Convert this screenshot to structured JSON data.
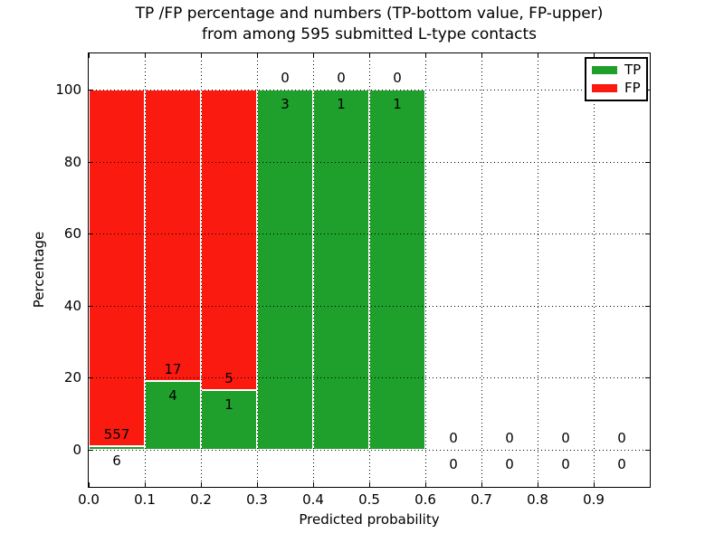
{
  "title": {
    "line1": "TP /FP percentage and numbers (TP-bottom value, FP-upper)",
    "line2": "from among 595 submitted L-type contacts"
  },
  "chart_data": {
    "type": "bar",
    "subtype": "stacked-percentage-histogram",
    "title": "TP /FP percentage and numbers (TP-bottom value, FP-upper) from among 595 submitted L-type contacts",
    "xlabel": "Predicted probability",
    "ylabel": "Percentage",
    "x_tick_labels": [
      "0.0",
      "0.1",
      "0.2",
      "0.3",
      "0.4",
      "0.5",
      "0.6",
      "0.7",
      "0.8",
      "0.9"
    ],
    "y_ticks": [
      0,
      20,
      40,
      60,
      80,
      100
    ],
    "xlim": [
      0.0,
      1.0
    ],
    "ylim": [
      -10.5,
      110.5
    ],
    "bin_width": 0.1,
    "grid": "dotted",
    "total_submitted": 595,
    "legend": {
      "position": "upper-right",
      "entries": [
        {
          "label": "TP",
          "color": "#1fa02c"
        },
        {
          "label": "FP",
          "color": "#fa1a0f"
        }
      ]
    },
    "bins": [
      {
        "range": "0.0-0.1",
        "tp": 6,
        "fp": 557
      },
      {
        "range": "0.1-0.2",
        "tp": 4,
        "fp": 17
      },
      {
        "range": "0.2-0.3",
        "tp": 1,
        "fp": 5
      },
      {
        "range": "0.3-0.4",
        "tp": 3,
        "fp": 0
      },
      {
        "range": "0.4-0.5",
        "tp": 1,
        "fp": 0
      },
      {
        "range": "0.5-0.6",
        "tp": 1,
        "fp": 0
      },
      {
        "range": "0.6-0.7",
        "tp": 0,
        "fp": 0
      },
      {
        "range": "0.7-0.8",
        "tp": 0,
        "fp": 0
      },
      {
        "range": "0.8-0.9",
        "tp": 0,
        "fp": 0
      },
      {
        "range": "0.9-1.0",
        "tp": 0,
        "fp": 0
      }
    ]
  },
  "colors": {
    "tp_green": "#1fa02c",
    "fp_red": "#fa1a0f",
    "grid": "#000000",
    "background": "#ffffff",
    "text": "#000000"
  }
}
